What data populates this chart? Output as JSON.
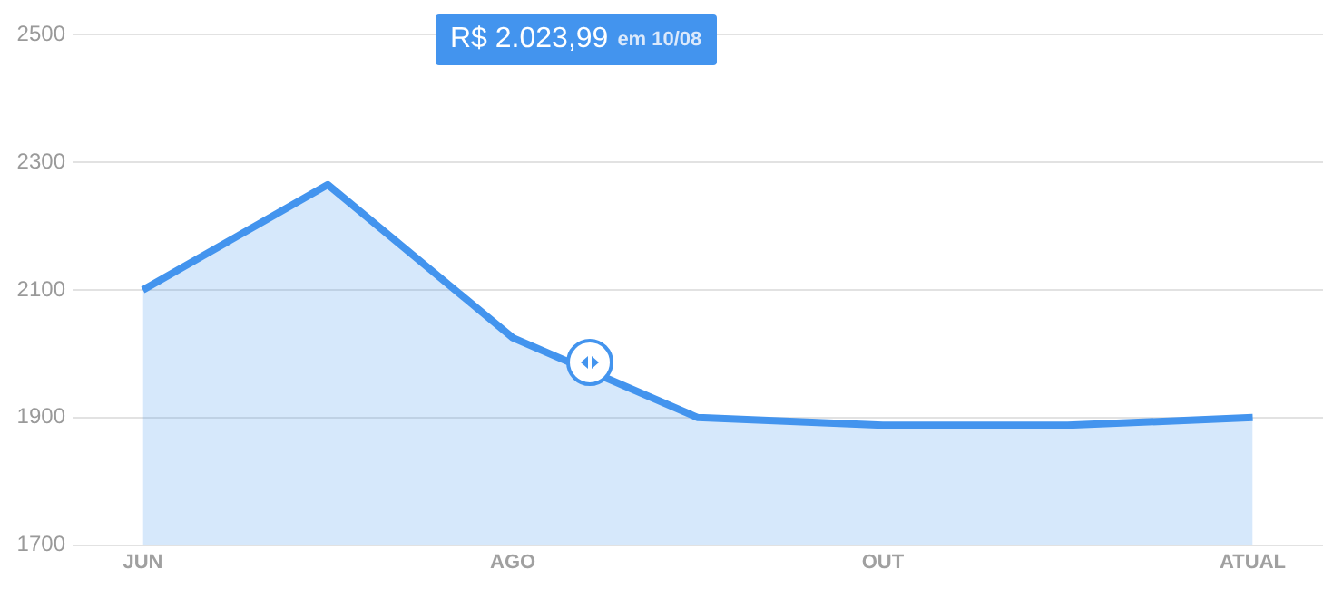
{
  "chart_data": {
    "type": "area",
    "categories": [
      "JUN",
      null,
      "AGO",
      null,
      "OUT",
      null,
      "ATUAL"
    ],
    "series": [
      {
        "color": "#4394ee",
        "values": [
          2100,
          2265,
          2025,
          1900,
          1888,
          1888,
          1900
        ]
      }
    ],
    "ylim": [
      1700,
      2500
    ],
    "yticks": [
      1700,
      1900,
      2100,
      2300,
      2500
    ],
    "grid": "y",
    "legend": false,
    "marker": "none",
    "line_style": "solid",
    "annotations": [
      "R$ 2.023,99",
      "em 10/08"
    ]
  }
}
